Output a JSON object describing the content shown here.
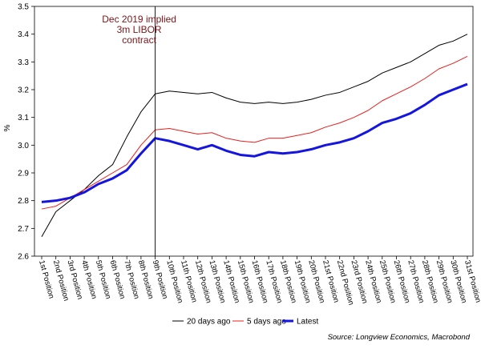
{
  "chart_data": {
    "type": "line",
    "ylabel": "%",
    "ylim": [
      2.6,
      3.5
    ],
    "yticks": [
      "2.6",
      "2.7",
      "2.8",
      "2.9",
      "3.0",
      "3.1",
      "3.2",
      "3.3",
      "3.4",
      "3.5"
    ],
    "categories": [
      "1st Position",
      "2nd Position",
      "3rd Position",
      "4th Position",
      "5th Position",
      "6th Position",
      "7th Position",
      "8th Position",
      "9th Position",
      "10th Position",
      "11th Position",
      "12th Position",
      "13th Position",
      "14th Position",
      "15th Position",
      "16th Position",
      "17th Position",
      "18th Position",
      "19th Position",
      "20th Position",
      "21st Position",
      "22nd Position",
      "23rd Position",
      "24th Position",
      "25th Position",
      "26th Position",
      "27th Position",
      "28th Position",
      "29th Position",
      "30th Position",
      "31st Position"
    ],
    "series": [
      {
        "name": "20 days ago",
        "color": "#000000",
        "values": [
          2.67,
          2.76,
          2.8,
          2.84,
          2.89,
          2.93,
          3.03,
          3.12,
          3.185,
          3.195,
          3.19,
          3.185,
          3.19,
          3.17,
          3.155,
          3.15,
          3.155,
          3.15,
          3.155,
          3.165,
          3.18,
          3.19,
          3.21,
          3.23,
          3.26,
          3.28,
          3.3,
          3.33,
          3.36,
          3.375,
          3.4
        ]
      },
      {
        "name": "5 days ago",
        "color": "#e8201e",
        "values": [
          2.77,
          2.78,
          2.81,
          2.84,
          2.87,
          2.9,
          2.93,
          3.0,
          3.055,
          3.06,
          3.05,
          3.04,
          3.045,
          3.025,
          3.015,
          3.01,
          3.025,
          3.025,
          3.035,
          3.045,
          3.065,
          3.08,
          3.1,
          3.125,
          3.16,
          3.185,
          3.21,
          3.24,
          3.275,
          3.295,
          3.32
        ]
      },
      {
        "name": "Latest",
        "color": "#1515e0",
        "values": [
          2.795,
          2.8,
          2.81,
          2.83,
          2.86,
          2.88,
          2.91,
          2.97,
          3.025,
          3.015,
          3.0,
          2.985,
          3.0,
          2.98,
          2.965,
          2.96,
          2.975,
          2.97,
          2.975,
          2.985,
          3.0,
          3.01,
          3.025,
          3.05,
          3.08,
          3.095,
          3.115,
          3.145,
          3.18,
          3.2,
          3.22
        ]
      }
    ],
    "annotation": {
      "lines": [
        "Dec 2019 implied",
        "3m LIBOR",
        "contract"
      ],
      "category_index": 8,
      "color": "#7a1418"
    },
    "legend": {
      "placement": "bottom-center",
      "entries": [
        "20 days ago",
        "5 days ago",
        "Latest"
      ]
    },
    "source": "Source: Longview Economics, Macrobond",
    "grid": false
  }
}
